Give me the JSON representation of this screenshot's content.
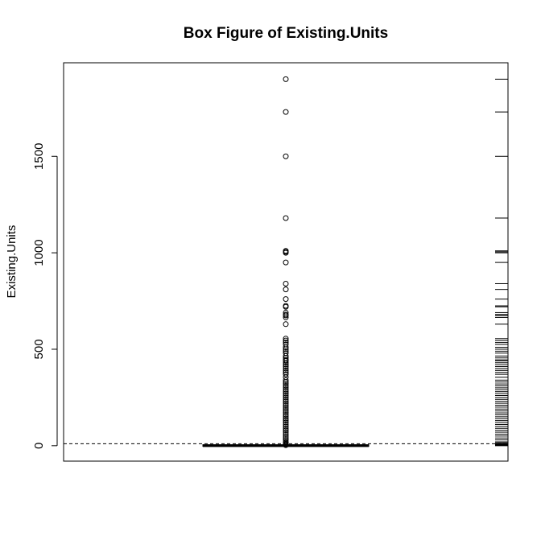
{
  "chart_data": {
    "type": "boxplot",
    "title": "Box Figure of Existing.Units",
    "xlabel": "",
    "ylabel": "Existing.Units",
    "ylim": [
      -80,
      1985
    ],
    "yticks": [
      0,
      500,
      1000,
      1500
    ],
    "ytick_labels": [
      "0",
      "500",
      "1000",
      "1500"
    ],
    "box": {
      "min": 0,
      "q1": 0,
      "median": 0,
      "q3": 1,
      "whisker_high": 2
    },
    "reference_line": {
      "y": 10,
      "style": "dashed"
    },
    "outliers": [
      1900,
      1730,
      1500,
      1180,
      1010,
      1005,
      1000,
      950,
      840,
      810,
      760,
      725,
      720,
      690,
      680,
      675,
      665,
      630,
      555,
      545,
      535,
      525,
      510,
      500,
      490,
      480,
      465,
      455,
      445,
      440,
      430,
      420,
      410,
      400,
      390,
      380,
      370,
      355,
      340,
      330,
      320,
      310,
      300,
      290,
      280,
      270,
      260,
      250,
      240,
      230,
      220,
      210,
      200,
      190,
      180,
      170,
      160,
      150,
      140,
      130,
      120,
      110,
      100,
      90,
      80,
      70,
      60,
      50,
      40,
      30,
      20,
      15,
      10,
      8,
      6,
      4,
      3
    ],
    "rug": [
      1900,
      1730,
      1500,
      1180,
      1010,
      1005,
      1000,
      950,
      840,
      810,
      760,
      725,
      720,
      690,
      680,
      675,
      665,
      630,
      555,
      545,
      535,
      525,
      510,
      500,
      490,
      480,
      465,
      455,
      445,
      440,
      430,
      420,
      410,
      400,
      390,
      380,
      370,
      355,
      340,
      330,
      320,
      310,
      300,
      290,
      280,
      270,
      260,
      250,
      240,
      230,
      220,
      210,
      200,
      190,
      180,
      170,
      160,
      150,
      140,
      130,
      120,
      110,
      100,
      90,
      80,
      70,
      60,
      50,
      40,
      30,
      20,
      15,
      10,
      8,
      6,
      4,
      3,
      2,
      1,
      0
    ],
    "grid": false,
    "legend": "none"
  }
}
